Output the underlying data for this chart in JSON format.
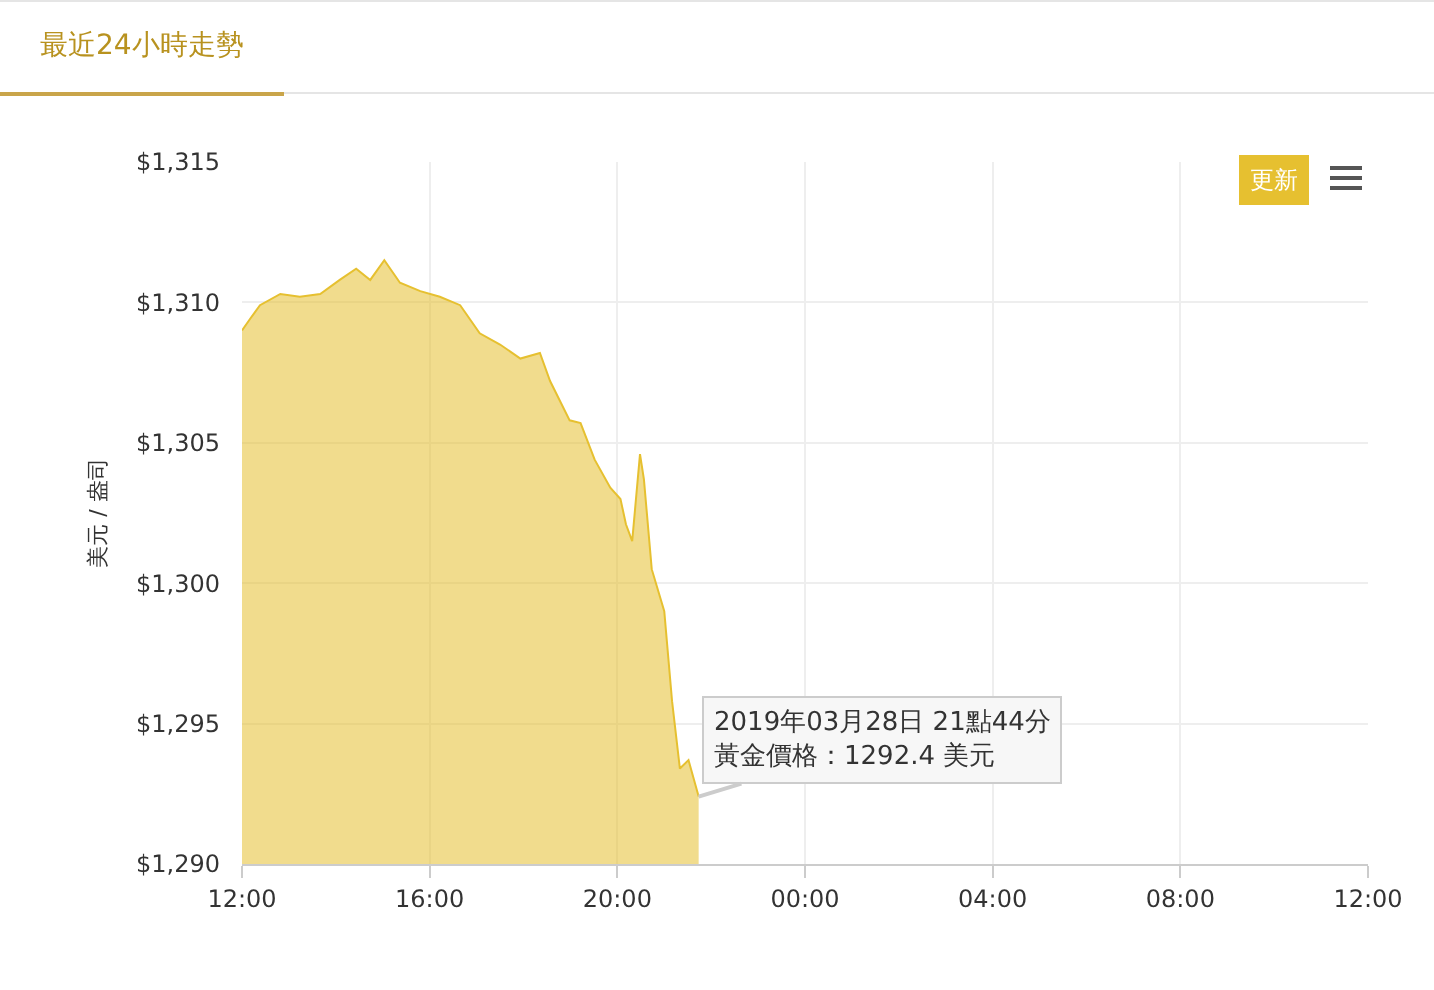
{
  "chart_data": {
    "type": "area",
    "title": "最近24小時走勢",
    "ylabel": "美元 / 盎司",
    "x": [
      "2019-03-28T12:00",
      "2019-03-28T12:10",
      "2019-03-28T12:23",
      "2019-03-28T12:49",
      "2019-03-28T13:14",
      "2019-03-28T13:40",
      "2019-03-28T14:05",
      "2019-03-28T14:26",
      "2019-03-28T14:44",
      "2019-03-28T15:02",
      "2019-03-28T15:22",
      "2019-03-28T15:48",
      "2019-03-28T16:13",
      "2019-03-28T16:39",
      "2019-03-28T17:04",
      "2019-03-28T17:30",
      "2019-03-28T17:56",
      "2019-03-28T18:21",
      "2019-03-28T18:34",
      "2019-03-28T18:59",
      "2019-03-28T19:13",
      "2019-03-28T19:31",
      "2019-03-28T19:51",
      "2019-03-28T20:04",
      "2019-03-28T20:11",
      "2019-03-28T20:19",
      "2019-03-28T20:29",
      "2019-03-28T20:34",
      "2019-03-28T20:44",
      "2019-03-28T21:00",
      "2019-03-28T21:10",
      "2019-03-28T21:20",
      "2019-03-28T21:31",
      "2019-03-28T21:44"
    ],
    "series": [
      {
        "color": "#e6c030",
        "values": [
          1309.0,
          1309.4,
          1309.9,
          1310.3,
          1310.2,
          1310.3,
          1310.8,
          1311.2,
          1310.8,
          1311.5,
          1310.7,
          1310.4,
          1310.2,
          1309.9,
          1308.9,
          1308.5,
          1308.0,
          1308.2,
          1307.2,
          1305.8,
          1305.7,
          1304.4,
          1303.4,
          1303.0,
          1302.1,
          1301.5,
          1304.6,
          1303.7,
          1300.5,
          1299.0,
          1295.8,
          1293.4,
          1293.7,
          1292.4
        ]
      }
    ],
    "xlim": [
      "2019-03-28T12:00",
      "2019-03-29T12:00"
    ],
    "xticks": [
      {
        "value": "2019-03-28T12:00",
        "label": "12:00"
      },
      {
        "value": "2019-03-28T16:00",
        "label": "16:00"
      },
      {
        "value": "2019-03-28T20:00",
        "label": "20:00"
      },
      {
        "value": "2019-03-29T00:00",
        "label": "00:00"
      },
      {
        "value": "2019-03-29T04:00",
        "label": "04:00"
      },
      {
        "value": "2019-03-29T08:00",
        "label": "08:00"
      },
      {
        "value": "2019-03-29T12:00",
        "label": "12:00"
      }
    ],
    "ylim": [
      1290,
      1315
    ],
    "yticks": [
      {
        "value": 1290,
        "label": "$1,290"
      },
      {
        "value": 1295,
        "label": "$1,295"
      },
      {
        "value": 1300,
        "label": "$1,300"
      },
      {
        "value": 1305,
        "label": "$1,305"
      },
      {
        "value": 1310,
        "label": "$1,310"
      },
      {
        "value": 1315,
        "label": "$1,315"
      }
    ],
    "grid": true,
    "annotations": [
      {
        "text": "2019年03月28日 21點44分",
        "x": "2019-03-28T21:44",
        "y": 1292.4
      },
      {
        "text": "黃金價格：1292.4 美元",
        "x": "2019-03-28T21:44",
        "y": 1292.4
      },
      "更新"
    ]
  }
}
